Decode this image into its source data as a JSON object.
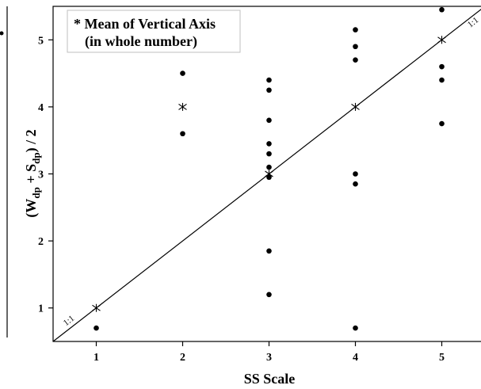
{
  "chart_data": {
    "type": "scatter",
    "xlabel": "SS Scale",
    "ylabel_parts": {
      "open": "(W",
      "sub1": "dp",
      "mid": " + S",
      "sub2": "dp",
      "close": ") / 2"
    },
    "xlim": [
      0.5,
      5.5
    ],
    "ylim": [
      0.5,
      5.5
    ],
    "x_ticks": [
      1,
      2,
      3,
      4,
      5
    ],
    "y_ticks": [
      1,
      2,
      3,
      4,
      5
    ],
    "grid": false,
    "legend": {
      "position": "top-left",
      "line1": "* Mean of Vertical Axis",
      "line2": "(in whole number)"
    },
    "reference_line": {
      "label_low": "1:1",
      "label_high": "1:1",
      "from": [
        0.5,
        0.5
      ],
      "to": [
        5.5,
        5.5
      ]
    },
    "points": [
      {
        "x": 1,
        "y": 0.7
      },
      {
        "x": 2,
        "y": 4.5
      },
      {
        "x": 2,
        "y": 3.6
      },
      {
        "x": 3,
        "y": 4.4
      },
      {
        "x": 3,
        "y": 4.25
      },
      {
        "x": 3,
        "y": 3.8
      },
      {
        "x": 3,
        "y": 3.45
      },
      {
        "x": 3,
        "y": 3.3
      },
      {
        "x": 3,
        "y": 3.1
      },
      {
        "x": 3,
        "y": 2.95
      },
      {
        "x": 3,
        "y": 1.85
      },
      {
        "x": 3,
        "y": 1.2
      },
      {
        "x": 4,
        "y": 5.15
      },
      {
        "x": 4,
        "y": 4.9
      },
      {
        "x": 4,
        "y": 4.7
      },
      {
        "x": 4,
        "y": 3.0
      },
      {
        "x": 4,
        "y": 2.85
      },
      {
        "x": 4,
        "y": 0.7
      },
      {
        "x": 5,
        "y": 5.45
      },
      {
        "x": 5,
        "y": 4.6
      },
      {
        "x": 5,
        "y": 4.4
      },
      {
        "x": 5,
        "y": 3.75
      }
    ],
    "means": [
      {
        "x": 1,
        "y": 1
      },
      {
        "x": 2,
        "y": 4
      },
      {
        "x": 3,
        "y": 3
      },
      {
        "x": 4,
        "y": 4
      },
      {
        "x": 5,
        "y": 5
      }
    ]
  }
}
